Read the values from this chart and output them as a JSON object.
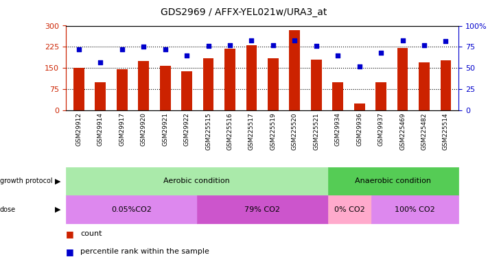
{
  "title": "GDS2969 / AFFX-YEL021w/URA3_at",
  "samples": [
    "GSM29912",
    "GSM29914",
    "GSM29917",
    "GSM29920",
    "GSM29921",
    "GSM29922",
    "GSM225515",
    "GSM225516",
    "GSM225517",
    "GSM225519",
    "GSM225520",
    "GSM225521",
    "GSM29934",
    "GSM29936",
    "GSM29937",
    "GSM225469",
    "GSM225482",
    "GSM225514"
  ],
  "counts": [
    150,
    100,
    147,
    175,
    157,
    138,
    185,
    220,
    230,
    185,
    285,
    180,
    100,
    25,
    100,
    222,
    170,
    178
  ],
  "percentiles": [
    72,
    57,
    72,
    75,
    72,
    65,
    76,
    77,
    83,
    77,
    83,
    76,
    65,
    52,
    68,
    83,
    77,
    82
  ],
  "bar_color": "#cc2200",
  "dot_color": "#0000cc",
  "ylim_left": [
    0,
    300
  ],
  "ylim_right": [
    0,
    100
  ],
  "yticks_left": [
    0,
    75,
    150,
    225,
    300
  ],
  "ytick_labels_left": [
    "0",
    "75",
    "150",
    "225",
    "300"
  ],
  "yticks_right": [
    0,
    25,
    50,
    75,
    100
  ],
  "ytick_labels_right": [
    "0",
    "25",
    "50",
    "75",
    "100%"
  ],
  "hlines": [
    75,
    150,
    225
  ],
  "growth_protocol_label": "growth protocol",
  "dose_label": "dose",
  "aerobic_n": 12,
  "anaerobic_n": 6,
  "aerobic_label": "Aerobic condition",
  "anaerobic_label": "Anaerobic condition",
  "aerobic_color": "#aaeaaa",
  "anaerobic_color": "#55cc55",
  "dose_spans": [
    {
      "label": "0.05%CO2",
      "start": 0,
      "end": 5,
      "color": "#dd88ee"
    },
    {
      "label": "79% CO2",
      "start": 6,
      "end": 11,
      "color": "#cc55cc"
    },
    {
      "label": "0% CO2",
      "start": 12,
      "end": 13,
      "color": "#ffaacc"
    },
    {
      "label": "100% CO2",
      "start": 14,
      "end": 17,
      "color": "#dd88ee"
    }
  ],
  "legend_count_color": "#cc2200",
  "legend_pct_color": "#0000cc",
  "axis_left_color": "#cc2200",
  "axis_right_color": "#0000cc",
  "bg_color": "#ffffff",
  "plot_bg_color": "#ffffff",
  "n_samples": 18
}
